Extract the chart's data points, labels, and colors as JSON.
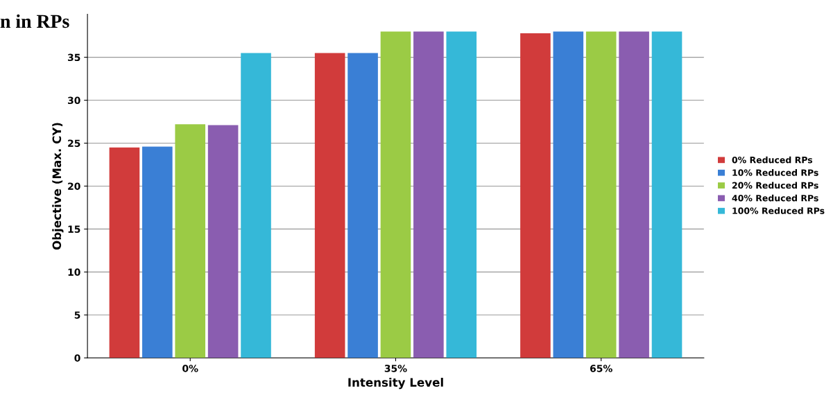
{
  "chart_data": {
    "type": "bar",
    "title": "n in RPs",
    "xlabel": "Intensity Level",
    "ylabel": "Objective (Max. CY)",
    "categories": [
      "0%",
      "35%",
      "65%"
    ],
    "series": [
      {
        "name": "0% Reduced RPs",
        "color": "#d13b3b",
        "values": [
          24.5,
          35.5,
          37.8
        ]
      },
      {
        "name": "10% Reduced RPs",
        "color": "#3a7fd5",
        "values": [
          24.6,
          35.5,
          38.0
        ]
      },
      {
        "name": "20% Reduced RPs",
        "color": "#9bcb45",
        "values": [
          27.2,
          38.0,
          38.0
        ]
      },
      {
        "name": "40% Reduced RPs",
        "color": "#8a5db0",
        "values": [
          27.1,
          38.0,
          38.0
        ]
      },
      {
        "name": "100% Reduced RPs",
        "color": "#35b8d8",
        "values": [
          35.5,
          38.0,
          38.0
        ]
      }
    ],
    "ylim": [
      0,
      40
    ],
    "yticks": [
      0,
      5,
      10,
      15,
      20,
      25,
      30,
      35
    ],
    "grid": "y",
    "legend": "right"
  }
}
